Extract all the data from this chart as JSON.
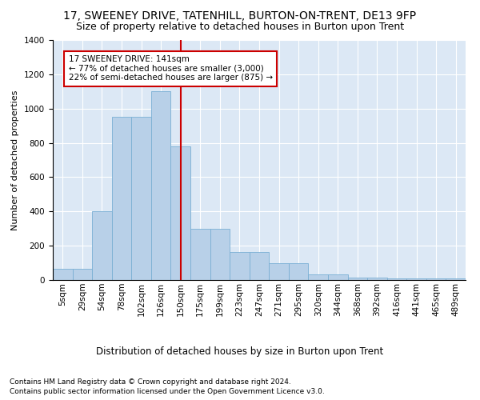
{
  "title1": "17, SWEENEY DRIVE, TATENHILL, BURTON-ON-TRENT, DE13 9FP",
  "title2": "Size of property relative to detached houses in Burton upon Trent",
  "dist_label": "Distribution of detached houses by size in Burton upon Trent",
  "ylabel": "Number of detached properties",
  "footnote1": "Contains HM Land Registry data © Crown copyright and database right 2024.",
  "footnote2": "Contains public sector information licensed under the Open Government Licence v3.0.",
  "categories": [
    "5sqm",
    "29sqm",
    "54sqm",
    "78sqm",
    "102sqm",
    "126sqm",
    "150sqm",
    "175sqm",
    "199sqm",
    "223sqm",
    "247sqm",
    "271sqm",
    "295sqm",
    "320sqm",
    "344sqm",
    "368sqm",
    "392sqm",
    "416sqm",
    "441sqm",
    "465sqm",
    "489sqm"
  ],
  "values": [
    65,
    65,
    400,
    950,
    950,
    1100,
    780,
    300,
    300,
    165,
    165,
    100,
    100,
    35,
    35,
    15,
    15,
    10,
    10,
    10,
    10
  ],
  "bar_color": "#b8d0e8",
  "bar_edge_color": "#7aafd4",
  "vline_color": "#cc0000",
  "annotation_text": "17 SWEENEY DRIVE: 141sqm\n← 77% of detached houses are smaller (3,000)\n22% of semi-detached houses are larger (875) →",
  "annotation_box_facecolor": "#ffffff",
  "annotation_box_edgecolor": "#cc0000",
  "ylim": [
    0,
    1400
  ],
  "yticks": [
    0,
    200,
    400,
    600,
    800,
    1000,
    1200,
    1400
  ],
  "background_color": "#dce8f5",
  "grid_color": "#ffffff",
  "title1_fontsize": 10,
  "title2_fontsize": 9,
  "ylabel_fontsize": 8,
  "tick_fontsize": 7.5,
  "annot_fontsize": 7.5,
  "dist_label_fontsize": 8.5,
  "footnote_fontsize": 6.5,
  "vline_pos": 6.0
}
